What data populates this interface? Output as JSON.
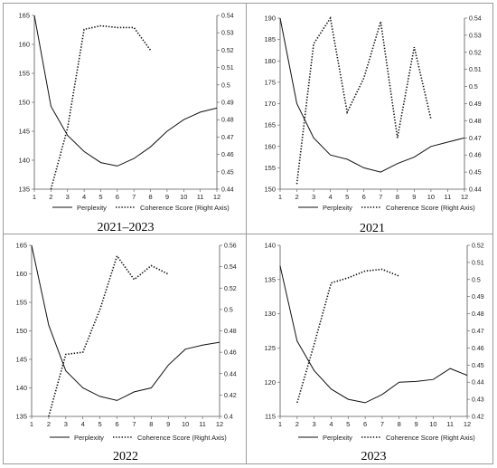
{
  "legend": {
    "perplexity": "Perplexity",
    "coherence": "Coherence Score (Right Axis)"
  },
  "chart_data": [
    {
      "type": "line",
      "title": "2021–2023",
      "x": [
        1,
        2,
        3,
        4,
        5,
        6,
        7,
        8,
        9,
        10,
        11,
        12
      ],
      "ylim_left": [
        135,
        165
      ],
      "yticks_left": [
        135,
        140,
        145,
        150,
        155,
        160,
        165
      ],
      "ylim_right": [
        0.44,
        0.54
      ],
      "yticks_right": [
        0.44,
        0.45,
        0.46,
        0.47,
        0.48,
        0.49,
        0.5,
        0.51,
        0.52,
        0.53,
        0.54
      ],
      "series": [
        {
          "name": "Perplexity",
          "axis": "left",
          "style": "solid",
          "x": [
            1,
            2,
            3,
            4,
            5,
            6,
            7,
            8,
            9,
            10,
            11,
            12
          ],
          "values": [
            165,
            149.3,
            144.3,
            141.5,
            139.6,
            139,
            140.3,
            142.3,
            145,
            147,
            148.3,
            149
          ]
        },
        {
          "name": "Coherence Score (Right Axis)",
          "axis": "right",
          "style": "dotted",
          "x": [
            2,
            3,
            4,
            5,
            6,
            7,
            8
          ],
          "values": [
            0.44,
            0.475,
            0.532,
            0.534,
            0.533,
            0.533,
            0.52
          ]
        }
      ],
      "legend_position": "bottom"
    },
    {
      "type": "line",
      "title": "2021",
      "x": [
        1,
        2,
        3,
        4,
        5,
        6,
        7,
        8,
        9,
        10,
        11,
        12
      ],
      "ylim_left": [
        150,
        190
      ],
      "yticks_left": [
        150,
        155,
        160,
        165,
        170,
        175,
        180,
        185,
        190
      ],
      "ylim_right": [
        0.44,
        0.54
      ],
      "yticks_right": [
        0.44,
        0.45,
        0.46,
        0.47,
        0.48,
        0.49,
        0.5,
        0.51,
        0.52,
        0.53,
        0.54
      ],
      "series": [
        {
          "name": "Perplexity",
          "axis": "left",
          "style": "solid",
          "x": [
            1,
            2,
            3,
            4,
            5,
            6,
            7,
            8,
            9,
            10,
            11,
            12
          ],
          "values": [
            190,
            170,
            162,
            158,
            157,
            155,
            154,
            156,
            157.5,
            160,
            161,
            162
          ]
        },
        {
          "name": "Coherence Score (Right Axis)",
          "axis": "right",
          "style": "dotted",
          "x": [
            2,
            3,
            4,
            5,
            6,
            7,
            8,
            9,
            10
          ],
          "values": [
            0.443,
            0.525,
            0.54,
            0.485,
            0.505,
            0.538,
            0.47,
            0.523,
            0.481
          ]
        }
      ],
      "legend_position": "bottom"
    },
    {
      "type": "line",
      "title": "2022",
      "x": [
        1,
        2,
        3,
        4,
        5,
        6,
        7,
        8,
        9,
        10,
        11,
        12
      ],
      "ylim_left": [
        135,
        165
      ],
      "yticks_left": [
        135,
        140,
        145,
        150,
        155,
        160,
        165
      ],
      "ylim_right": [
        0.4,
        0.56
      ],
      "yticks_right": [
        0.4,
        0.42,
        0.44,
        0.46,
        0.48,
        0.5,
        0.52,
        0.54,
        0.56
      ],
      "series": [
        {
          "name": "Perplexity",
          "axis": "left",
          "style": "solid",
          "x": [
            1,
            2,
            3,
            4,
            5,
            6,
            7,
            8,
            9,
            10,
            11,
            12
          ],
          "values": [
            165,
            151,
            143,
            140,
            138.5,
            137.8,
            139.3,
            140,
            144,
            146.8,
            147.5,
            148
          ]
        },
        {
          "name": "Coherence Score (Right Axis)",
          "axis": "right",
          "style": "dotted",
          "x": [
            2,
            3,
            4,
            5,
            6,
            7,
            8,
            9
          ],
          "values": [
            0.4,
            0.458,
            0.46,
            0.5,
            0.55,
            0.528,
            0.541,
            0.533
          ]
        }
      ],
      "legend_position": "bottom"
    },
    {
      "type": "line",
      "title": "2023",
      "x": [
        1,
        2,
        3,
        4,
        5,
        6,
        7,
        8,
        9,
        10,
        11,
        12
      ],
      "ylim_left": [
        115,
        140
      ],
      "yticks_left": [
        115,
        120,
        125,
        130,
        135,
        140
      ],
      "ylim_right": [
        0.42,
        0.52
      ],
      "yticks_right": [
        0.42,
        0.43,
        0.44,
        0.45,
        0.46,
        0.47,
        0.48,
        0.49,
        0.5,
        0.51,
        0.52
      ],
      "series": [
        {
          "name": "Perplexity",
          "axis": "left",
          "style": "solid",
          "x": [
            1,
            2,
            3,
            4,
            5,
            6,
            7,
            8,
            9,
            10,
            11,
            12
          ],
          "values": [
            137,
            126,
            121.7,
            119,
            117.5,
            117,
            118.2,
            120,
            120.1,
            120.4,
            122,
            121
          ]
        },
        {
          "name": "Coherence Score (Right Axis)",
          "axis": "right",
          "style": "dotted",
          "x": [
            2,
            3,
            4,
            5,
            6,
            7,
            8
          ],
          "values": [
            0.428,
            0.462,
            0.498,
            0.501,
            0.505,
            0.506,
            0.502
          ]
        }
      ],
      "legend_position": "bottom"
    }
  ]
}
